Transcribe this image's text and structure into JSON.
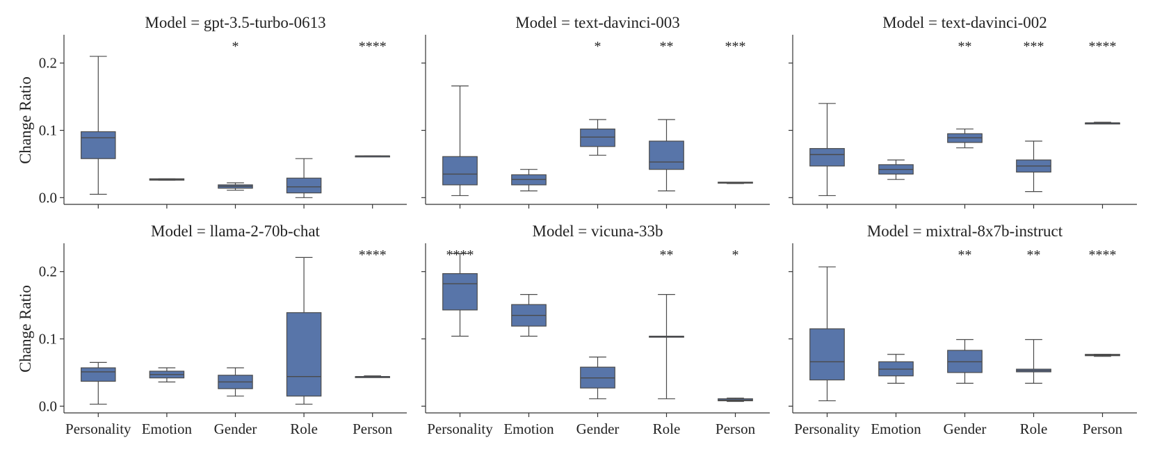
{
  "colors": {
    "box_fill": "#5875a9",
    "box_edge": "#4a4a4a",
    "axis": "#333333"
  },
  "chart_data": [
    {
      "type": "box",
      "title": "Model = gpt-3.5-turbo-0613",
      "ylabel": "Change Ratio",
      "categories": [
        "Personality",
        "Emotion",
        "Gender",
        "Role",
        "Person"
      ],
      "ylim": [
        -0.01,
        0.24
      ],
      "yticks": [
        "0.0",
        "0.1",
        "0.2"
      ],
      "boxes": [
        {
          "whislo": 0.005,
          "q1": 0.058,
          "med": 0.089,
          "q3": 0.098,
          "whishi": 0.21
        },
        {
          "whislo": 0.026,
          "q1": 0.026,
          "med": 0.027,
          "q3": 0.028,
          "whishi": 0.028
        },
        {
          "whislo": 0.011,
          "q1": 0.014,
          "med": 0.017,
          "q3": 0.019,
          "whishi": 0.022
        },
        {
          "whislo": 0.0,
          "q1": 0.007,
          "med": 0.016,
          "q3": 0.029,
          "whishi": 0.058
        },
        {
          "whislo": 0.062,
          "q1": 0.062,
          "med": 0.062,
          "q3": 0.062,
          "whishi": 0.062
        }
      ],
      "significance": [
        "",
        "",
        "*",
        "",
        "****"
      ]
    },
    {
      "type": "box",
      "title": "Model = text-davinci-003",
      "ylabel": "",
      "categories": [
        "Personality",
        "Emotion",
        "Gender",
        "Role",
        "Person"
      ],
      "ylim": [
        -0.01,
        0.24
      ],
      "yticks": [],
      "boxes": [
        {
          "whislo": 0.003,
          "q1": 0.019,
          "med": 0.035,
          "q3": 0.061,
          "whishi": 0.166
        },
        {
          "whislo": 0.01,
          "q1": 0.019,
          "med": 0.027,
          "q3": 0.034,
          "whishi": 0.042
        },
        {
          "whislo": 0.063,
          "q1": 0.076,
          "med": 0.09,
          "q3": 0.102,
          "whishi": 0.116
        },
        {
          "whislo": 0.01,
          "q1": 0.042,
          "med": 0.053,
          "q3": 0.084,
          "whishi": 0.116
        },
        {
          "whislo": 0.021,
          "q1": 0.022,
          "med": 0.022,
          "q3": 0.023,
          "whishi": 0.023
        }
      ],
      "significance": [
        "",
        "",
        "*",
        "**",
        "***"
      ]
    },
    {
      "type": "box",
      "title": "Model = text-davinci-002",
      "ylabel": "",
      "categories": [
        "Personality",
        "Emotion",
        "Gender",
        "Role",
        "Person"
      ],
      "ylim": [
        -0.01,
        0.24
      ],
      "yticks": [],
      "boxes": [
        {
          "whislo": 0.003,
          "q1": 0.047,
          "med": 0.064,
          "q3": 0.073,
          "whishi": 0.14
        },
        {
          "whislo": 0.027,
          "q1": 0.035,
          "med": 0.042,
          "q3": 0.049,
          "whishi": 0.056
        },
        {
          "whislo": 0.074,
          "q1": 0.082,
          "med": 0.089,
          "q3": 0.095,
          "whishi": 0.102
        },
        {
          "whislo": 0.009,
          "q1": 0.038,
          "med": 0.047,
          "q3": 0.056,
          "whishi": 0.084
        },
        {
          "whislo": 0.11,
          "q1": 0.11,
          "med": 0.111,
          "q3": 0.111,
          "whishi": 0.112
        }
      ],
      "significance": [
        "",
        "",
        "**",
        "***",
        "****"
      ]
    },
    {
      "type": "box",
      "title": "Model = llama-2-70b-chat",
      "ylabel": "Change Ratio",
      "categories": [
        "Personality",
        "Emotion",
        "Gender",
        "Role",
        "Person"
      ],
      "ylim": [
        -0.01,
        0.24
      ],
      "yticks": [
        "0.0",
        "0.1",
        "0.2"
      ],
      "boxes": [
        {
          "whislo": 0.003,
          "q1": 0.037,
          "med": 0.051,
          "q3": 0.057,
          "whishi": 0.065
        },
        {
          "whislo": 0.036,
          "q1": 0.042,
          "med": 0.047,
          "q3": 0.052,
          "whishi": 0.057
        },
        {
          "whislo": 0.015,
          "q1": 0.026,
          "med": 0.036,
          "q3": 0.046,
          "whishi": 0.057
        },
        {
          "whislo": 0.003,
          "q1": 0.015,
          "med": 0.044,
          "q3": 0.139,
          "whishi": 0.221
        },
        {
          "whislo": 0.043,
          "q1": 0.043,
          "med": 0.044,
          "q3": 0.044,
          "whishi": 0.045
        }
      ],
      "significance": [
        "",
        "",
        "",
        "",
        "****"
      ]
    },
    {
      "type": "box",
      "title": "Model = vicuna-33b",
      "ylabel": "",
      "categories": [
        "Personality",
        "Emotion",
        "Gender",
        "Role",
        "Person"
      ],
      "ylim": [
        -0.01,
        0.24
      ],
      "yticks": [],
      "boxes": [
        {
          "whislo": 0.104,
          "q1": 0.143,
          "med": 0.182,
          "q3": 0.197,
          "whishi": 0.227
        },
        {
          "whislo": 0.104,
          "q1": 0.119,
          "med": 0.135,
          "q3": 0.151,
          "whishi": 0.166
        },
        {
          "whislo": 0.011,
          "q1": 0.027,
          "med": 0.042,
          "q3": 0.058,
          "whishi": 0.073
        },
        {
          "whislo": 0.011,
          "q1": 0.104,
          "med": 0.104,
          "q3": 0.104,
          "whishi": 0.166
        },
        {
          "whislo": 0.007,
          "q1": 0.008,
          "med": 0.009,
          "q3": 0.011,
          "whishi": 0.012
        }
      ],
      "significance": [
        "****",
        "",
        "",
        "**",
        "*"
      ]
    },
    {
      "type": "box",
      "title": "Model = mixtral-8x7b-instruct",
      "ylabel": "",
      "categories": [
        "Personality",
        "Emotion",
        "Gender",
        "Role",
        "Person"
      ],
      "ylim": [
        -0.01,
        0.24
      ],
      "yticks": [],
      "boxes": [
        {
          "whislo": 0.008,
          "q1": 0.039,
          "med": 0.066,
          "q3": 0.115,
          "whishi": 0.207
        },
        {
          "whislo": 0.034,
          "q1": 0.045,
          "med": 0.055,
          "q3": 0.066,
          "whishi": 0.077
        },
        {
          "whislo": 0.034,
          "q1": 0.05,
          "med": 0.066,
          "q3": 0.083,
          "whishi": 0.099
        },
        {
          "whislo": 0.034,
          "q1": 0.051,
          "med": 0.053,
          "q3": 0.055,
          "whishi": 0.099
        },
        {
          "whislo": 0.074,
          "q1": 0.075,
          "med": 0.076,
          "q3": 0.077,
          "whishi": 0.077
        }
      ],
      "significance": [
        "",
        "",
        "**",
        "**",
        "****"
      ]
    }
  ]
}
